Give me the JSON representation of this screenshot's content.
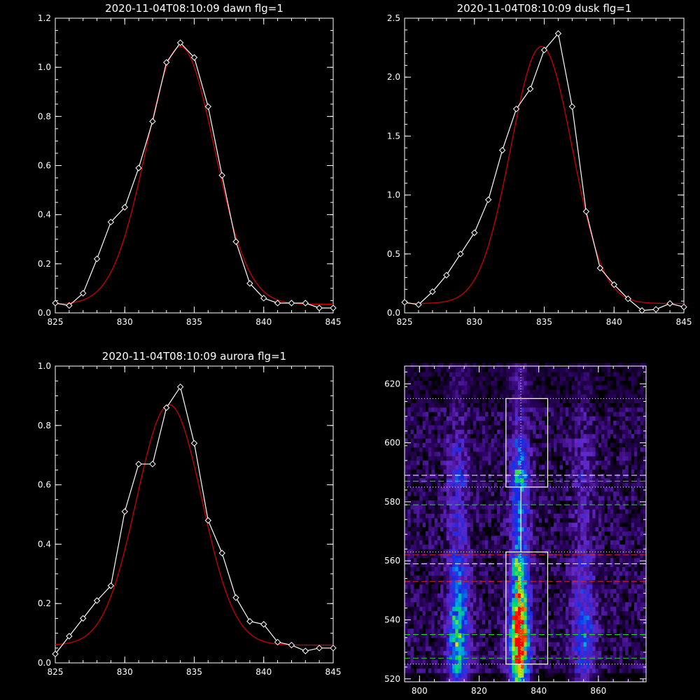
{
  "colors": {
    "background": "#000000",
    "data": "#ffffff",
    "fit": "#cc0000",
    "green_guide": "#22dd22",
    "red_guide": "#dd2222"
  },
  "chart_data": [
    {
      "type": "line",
      "title": "2020-11-04T08:10:09 dawn flg=1",
      "xlim": [
        825,
        845
      ],
      "ylim": [
        0,
        1.2
      ],
      "xticks": [
        "825",
        "830",
        "835",
        "840",
        "845"
      ],
      "yticks": [
        "0.0",
        "0.2",
        "0.4",
        "0.6",
        "0.8",
        "1.0",
        "1.2"
      ],
      "series": [
        {
          "role": "data",
          "markers": "diamond",
          "x": [
            825,
            826,
            827,
            828,
            829,
            830,
            831,
            832,
            833,
            834,
            835,
            836,
            837,
            838,
            839,
            840,
            841,
            842,
            843,
            844,
            845
          ],
          "y": [
            0.04,
            0.03,
            0.08,
            0.22,
            0.37,
            0.43,
            0.59,
            0.78,
            1.02,
            1.1,
            1.04,
            0.84,
            0.56,
            0.29,
            0.12,
            0.06,
            0.04,
            0.04,
            0.04,
            0.02,
            0.02
          ]
        },
        {
          "role": "fit",
          "gaussian": {
            "amp": 1.05,
            "center": 834.0,
            "sigma": 2.45,
            "offset": 0.035
          }
        }
      ]
    },
    {
      "type": "line",
      "title": "2020-11-04T08:10:09 dusk flg=1",
      "xlim": [
        825,
        845
      ],
      "ylim": [
        0,
        2.5
      ],
      "xticks": [
        "825",
        "830",
        "835",
        "840",
        "845"
      ],
      "yticks": [
        "0.0",
        "0.5",
        "1.0",
        "1.5",
        "2.0",
        "2.5"
      ],
      "series": [
        {
          "role": "data",
          "markers": "diamond",
          "x": [
            825,
            826,
            827,
            828,
            829,
            830,
            831,
            832,
            833,
            834,
            835,
            836,
            837,
            838,
            839,
            840,
            841,
            842,
            843,
            844,
            845
          ],
          "y": [
            0.09,
            0.07,
            0.18,
            0.32,
            0.5,
            0.68,
            0.96,
            1.38,
            1.73,
            1.9,
            2.23,
            2.37,
            1.75,
            0.86,
            0.38,
            0.24,
            0.12,
            0.02,
            0.03,
            0.08,
            0.05
          ]
        },
        {
          "role": "fit",
          "gaussian": {
            "amp": 2.18,
            "center": 834.8,
            "sigma": 2.2,
            "offset": 0.08
          }
        }
      ]
    },
    {
      "type": "line",
      "title": "2020-11-04T08:10:09 aurora flg=1",
      "xlim": [
        825,
        845
      ],
      "ylim": [
        0,
        1.0
      ],
      "xticks": [
        "825",
        "830",
        "835",
        "840",
        "845"
      ],
      "yticks": [
        "0.0",
        "0.2",
        "0.4",
        "0.6",
        "0.8",
        "1.0"
      ],
      "series": [
        {
          "role": "data",
          "markers": "diamond",
          "x": [
            825,
            826,
            827,
            828,
            829,
            830,
            831,
            832,
            833,
            834,
            835,
            836,
            837,
            838,
            839,
            840,
            841,
            842,
            843,
            844,
            845
          ],
          "y": [
            0.03,
            0.09,
            0.15,
            0.21,
            0.26,
            0.51,
            0.67,
            0.67,
            0.86,
            0.93,
            0.74,
            0.48,
            0.37,
            0.22,
            0.14,
            0.13,
            0.07,
            0.06,
            0.04,
            0.05,
            0.05
          ]
        },
        {
          "role": "fit",
          "gaussian": {
            "amp": 0.81,
            "center": 833.2,
            "sigma": 2.35,
            "offset": 0.06
          }
        }
      ]
    },
    {
      "type": "heatmap",
      "xlim": [
        795,
        876
      ],
      "ylim": [
        519,
        626
      ],
      "xticks": [
        "800",
        "820",
        "840",
        "860"
      ],
      "yticks": [
        "520",
        "540",
        "560",
        "580",
        "600",
        "620"
      ],
      "emission_columns": [
        {
          "center": 813,
          "width": 2.5,
          "peak": 0.55
        },
        {
          "center": 833.5,
          "width": 2.2,
          "peak": 1.0
        },
        {
          "center": 855,
          "width": 2.5,
          "peak": 0.35
        }
      ],
      "vertical_line_x": 834,
      "boxes": [
        {
          "x": [
            829,
            843
          ],
          "y": [
            585,
            615
          ]
        },
        {
          "x": [
            829,
            843
          ],
          "y": [
            525,
            563
          ]
        }
      ],
      "white_dotted_y": [
        615,
        585,
        563,
        525
      ],
      "white_dashed_y": [
        589,
        559
      ],
      "green_dashed_y": [
        587,
        579,
        535,
        527
      ],
      "red_dashed_y": [
        562,
        553
      ]
    }
  ]
}
